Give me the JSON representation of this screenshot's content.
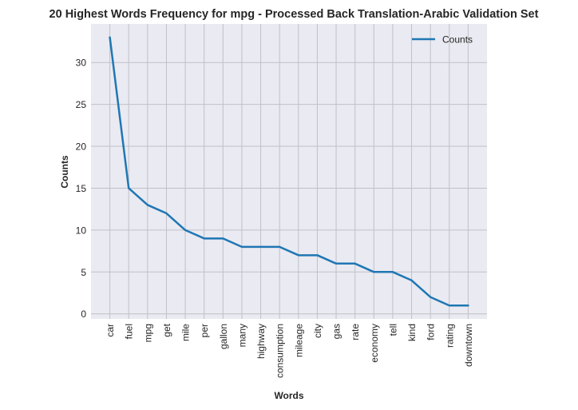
{
  "chart_data": {
    "type": "line",
    "title": "20 Highest Words Frequency for mpg - Processed Back Translation-Arabic Validation Set",
    "xlabel": "Words",
    "ylabel": "Counts",
    "categories": [
      "car",
      "fuel",
      "mpg",
      "get",
      "mile",
      "per",
      "gallon",
      "many",
      "highway",
      "consumption",
      "mileage",
      "city",
      "gas",
      "rate",
      "economy",
      "tell",
      "kind",
      "ford",
      "rating",
      "downtown"
    ],
    "series": [
      {
        "name": "Counts",
        "values": [
          33,
          15,
          13,
          12,
          10,
          9,
          9,
          8,
          8,
          8,
          7,
          7,
          6,
          6,
          5,
          5,
          4,
          2,
          1,
          1
        ]
      }
    ],
    "ylim": [
      -0.6,
      34.6
    ],
    "yticks": [
      0,
      5,
      10,
      15,
      20,
      25,
      30
    ],
    "grid": true,
    "legend": "top-right",
    "colors": {
      "line": "#1f77b4",
      "plot_background": "#eaeaf2",
      "grid": "#c0c0c6",
      "text": "#262626"
    }
  }
}
